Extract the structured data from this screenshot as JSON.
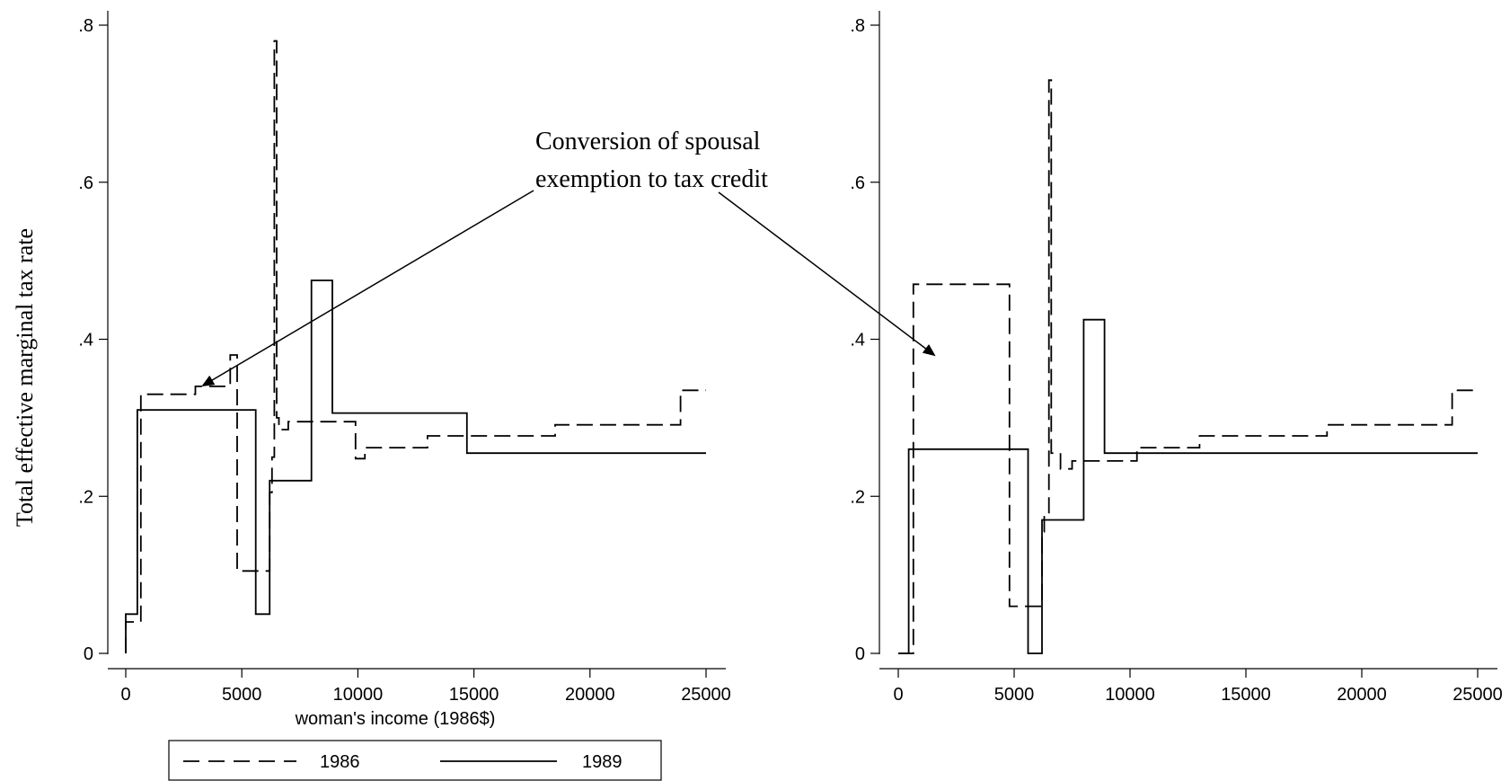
{
  "chart_data": [
    {
      "type": "line",
      "panel": "left",
      "ylabel": "Total effective marginal tax rate",
      "xlabel": "woman's income (1986$)",
      "xlim": [
        0,
        25000
      ],
      "ylim": [
        0,
        0.8
      ],
      "xticks": [
        0,
        5000,
        10000,
        15000,
        20000,
        25000
      ],
      "xtick_labels": [
        "0",
        "5000",
        "10000",
        "15000",
        "20000",
        "25000"
      ],
      "yticks": [
        0,
        0.2,
        0.4,
        0.6,
        0.8
      ],
      "ytick_labels": [
        "0",
        ".2",
        ".4",
        ".6",
        ".8"
      ],
      "grid": false,
      "series": [
        {
          "name": "1986",
          "style": "dashed",
          "x": [
            0,
            0,
            650,
            650,
            1500,
            1500,
            3000,
            3000,
            4500,
            4500,
            4800,
            4800,
            6200,
            6200,
            6300,
            6300,
            6400,
            6400,
            6500,
            6500,
            6600,
            6600,
            7000,
            7000,
            7500,
            7500,
            9900,
            9900,
            10300,
            10300,
            13000,
            13000,
            18500,
            18500,
            23900,
            23900,
            25000
          ],
          "y": [
            0,
            0.04,
            0.04,
            0.33,
            0.33,
            0.33,
            0.33,
            0.34,
            0.34,
            0.38,
            0.38,
            0.105,
            0.105,
            0.205,
            0.205,
            0.25,
            0.25,
            0.78,
            0.78,
            0.3,
            0.3,
            0.285,
            0.285,
            0.295,
            0.295,
            0.295,
            0.295,
            0.248,
            0.248,
            0.262,
            0.262,
            0.277,
            0.277,
            0.291,
            0.291,
            0.335,
            0.335
          ]
        },
        {
          "name": "1989",
          "style": "solid",
          "x": [
            0,
            0,
            500,
            500,
            5600,
            5600,
            6200,
            6200,
            6400,
            6400,
            8000,
            8000,
            8900,
            8900,
            14700,
            14700,
            25000
          ],
          "y": [
            0,
            0.05,
            0.05,
            0.31,
            0.31,
            0.05,
            0.05,
            0.22,
            0.22,
            0.22,
            0.22,
            0.475,
            0.475,
            0.306,
            0.306,
            0.255,
            0.255
          ]
        }
      ]
    },
    {
      "type": "line",
      "panel": "right",
      "xlim": [
        0,
        25000
      ],
      "ylim": [
        0,
        0.8
      ],
      "xticks": [
        0,
        5000,
        10000,
        15000,
        20000,
        25000
      ],
      "xtick_labels": [
        "0",
        "5000",
        "10000",
        "15000",
        "20000",
        "25000"
      ],
      "yticks": [
        0,
        0.2,
        0.4,
        0.6,
        0.8
      ],
      "ytick_labels": [
        "0",
        ".2",
        ".4",
        ".6",
        ".8"
      ],
      "grid": false,
      "series": [
        {
          "name": "1986",
          "style": "dashed",
          "x": [
            0,
            650,
            650,
            4800,
            4800,
            6200,
            6200,
            6300,
            6300,
            6500,
            6500,
            6600,
            6600,
            7000,
            7000,
            7500,
            7500,
            8000,
            8000,
            10300,
            10300,
            13000,
            13000,
            18500,
            18500,
            23900,
            23900,
            25000
          ],
          "y": [
            0,
            0,
            0.47,
            0.47,
            0.06,
            0.06,
            0.155,
            0.155,
            0.175,
            0.175,
            0.73,
            0.73,
            0.255,
            0.255,
            0.235,
            0.235,
            0.245,
            0.245,
            0.245,
            0.245,
            0.262,
            0.262,
            0.277,
            0.277,
            0.291,
            0.291,
            0.335,
            0.335
          ]
        },
        {
          "name": "1989",
          "style": "solid",
          "x": [
            0,
            450,
            450,
            5600,
            5600,
            6200,
            6200,
            8000,
            8000,
            8900,
            8900,
            25000
          ],
          "y": [
            0,
            0,
            0.26,
            0.26,
            0,
            0,
            0.17,
            0.17,
            0.425,
            0.425,
            0.255,
            0.255
          ]
        }
      ]
    }
  ],
  "annotation": {
    "line1": "Conversion of spousal",
    "line2": "exemption to tax credit"
  },
  "legend": {
    "entries": [
      {
        "label": "1986",
        "style": "dashed"
      },
      {
        "label": "1989",
        "style": "solid"
      }
    ],
    "placement": "bottom-left"
  },
  "colors": {
    "line": "#000000",
    "background": "#ffffff"
  }
}
